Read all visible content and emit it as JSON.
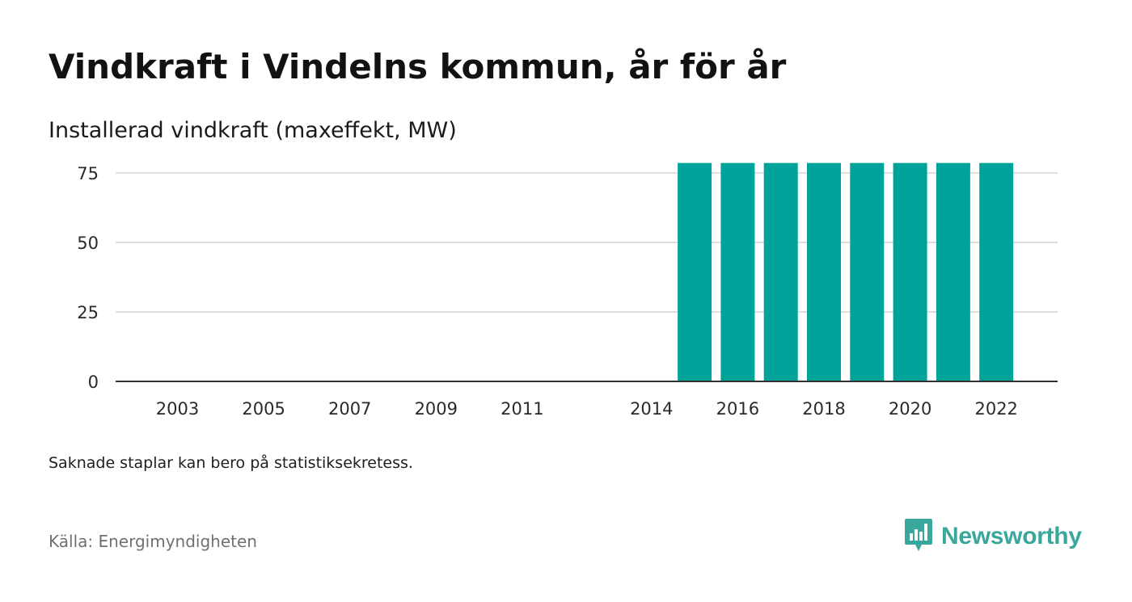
{
  "title": "Vindkraft i Vindelns kommun, år för år",
  "subtitle": "Installerad vindkraft (maxeffekt, MW)",
  "note": "Saknade staplar kan bero på statistiksekretess.",
  "source": "Källa: Energimyndigheten",
  "brand": {
    "name": "Newsworthy",
    "icon": "newsworthy-logo-icon",
    "color": "#3aa79c"
  },
  "colors": {
    "bar": "#00a39a",
    "grid": "#dddddd",
    "axis": "#333333"
  },
  "chart_data": {
    "type": "bar",
    "categories": [
      "2003",
      "2004",
      "2005",
      "2006",
      "2007",
      "2008",
      "2009",
      "2010",
      "2011",
      "2012",
      "2013",
      "2014",
      "2015",
      "2016",
      "2017",
      "2018",
      "2019",
      "2020",
      "2021",
      "2022"
    ],
    "values": [
      0,
      0,
      0,
      0,
      0,
      0,
      0,
      0,
      0,
      0,
      0,
      0,
      78.6,
      78.6,
      78.6,
      78.6,
      78.6,
      78.6,
      78.6,
      78.6
    ],
    "x_tick_labels": [
      "2003",
      "2005",
      "2007",
      "2009",
      "2011",
      "2014",
      "2016",
      "2018",
      "2020",
      "2022"
    ],
    "y_ticks": [
      0,
      25,
      50,
      75
    ],
    "ylim": [
      0,
      82
    ],
    "title": "Vindkraft i Vindelns kommun, år för år",
    "subtitle": "Installerad vindkraft (maxeffekt, MW)",
    "xlabel": "",
    "ylabel": "",
    "grid": true,
    "legend": "none"
  }
}
